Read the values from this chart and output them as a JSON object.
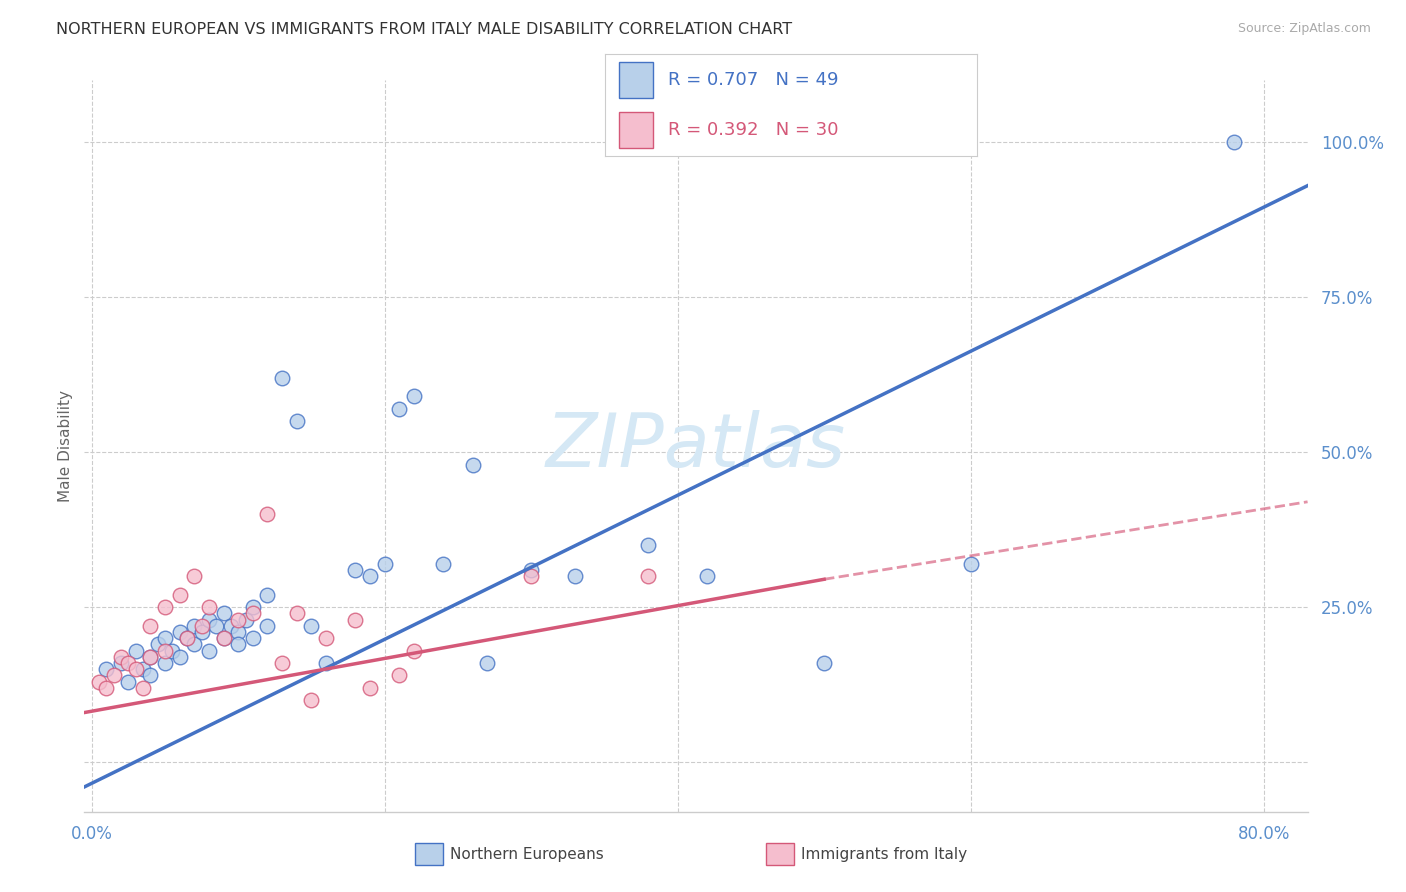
{
  "title": "NORTHERN EUROPEAN VS IMMIGRANTS FROM ITALY MALE DISABILITY CORRELATION CHART",
  "source": "Source: ZipAtlas.com",
  "ylabel_label": "Male Disability",
  "xlim": [
    -0.005,
    0.83
  ],
  "ylim": [
    -0.08,
    1.1
  ],
  "blue_R": "0.707",
  "blue_N": "49",
  "pink_R": "0.392",
  "pink_N": "30",
  "blue_scatter_color": "#b8d0ea",
  "blue_line_color": "#4472c4",
  "pink_scatter_color": "#f5bece",
  "pink_line_color": "#d45878",
  "grid_color": "#cccccc",
  "watermark_color": "#d5e8f5",
  "tick_label_color": "#5b8fcc",
  "x_tick_vals": [
    0.0,
    0.2,
    0.4,
    0.6,
    0.8
  ],
  "x_tick_labels": [
    "0.0%",
    "",
    "",
    "",
    "80.0%"
  ],
  "y_tick_vals": [
    0.0,
    0.25,
    0.5,
    0.75,
    1.0
  ],
  "y_tick_labels": [
    "",
    "25.0%",
    "50.0%",
    "75.0%",
    "100.0%"
  ],
  "blue_line_x0": -0.005,
  "blue_line_x1": 0.83,
  "blue_line_y0": -0.04,
  "blue_line_y1": 0.93,
  "pink_line_x0": -0.005,
  "pink_line_solid_x1": 0.5,
  "pink_line_dash_x1": 0.83,
  "pink_line_y0": 0.08,
  "pink_line_y_solid_end": 0.295,
  "pink_line_y_dash_end": 0.42,
  "blue_x": [
    0.01,
    0.02,
    0.025,
    0.03,
    0.035,
    0.04,
    0.04,
    0.045,
    0.05,
    0.05,
    0.055,
    0.06,
    0.06,
    0.065,
    0.07,
    0.07,
    0.075,
    0.08,
    0.08,
    0.085,
    0.09,
    0.09,
    0.095,
    0.1,
    0.1,
    0.105,
    0.11,
    0.11,
    0.12,
    0.12,
    0.13,
    0.14,
    0.15,
    0.16,
    0.18,
    0.19,
    0.2,
    0.21,
    0.22,
    0.24,
    0.26,
    0.27,
    0.3,
    0.33,
    0.38,
    0.42,
    0.5,
    0.6,
    0.78
  ],
  "blue_y": [
    0.15,
    0.16,
    0.13,
    0.18,
    0.15,
    0.17,
    0.14,
    0.19,
    0.2,
    0.16,
    0.18,
    0.21,
    0.17,
    0.2,
    0.22,
    0.19,
    0.21,
    0.23,
    0.18,
    0.22,
    0.24,
    0.2,
    0.22,
    0.21,
    0.19,
    0.23,
    0.25,
    0.2,
    0.27,
    0.22,
    0.62,
    0.55,
    0.22,
    0.16,
    0.31,
    0.3,
    0.32,
    0.57,
    0.59,
    0.32,
    0.48,
    0.16,
    0.31,
    0.3,
    0.35,
    0.3,
    0.16,
    0.32,
    1.0
  ],
  "pink_x": [
    0.005,
    0.01,
    0.015,
    0.02,
    0.025,
    0.03,
    0.035,
    0.04,
    0.04,
    0.05,
    0.05,
    0.06,
    0.065,
    0.07,
    0.075,
    0.08,
    0.09,
    0.1,
    0.11,
    0.12,
    0.13,
    0.14,
    0.15,
    0.16,
    0.18,
    0.19,
    0.21,
    0.22,
    0.3,
    0.38
  ],
  "pink_y": [
    0.13,
    0.12,
    0.14,
    0.17,
    0.16,
    0.15,
    0.12,
    0.22,
    0.17,
    0.25,
    0.18,
    0.27,
    0.2,
    0.3,
    0.22,
    0.25,
    0.2,
    0.23,
    0.24,
    0.4,
    0.16,
    0.24,
    0.1,
    0.2,
    0.23,
    0.12,
    0.14,
    0.18,
    0.3,
    0.3
  ]
}
